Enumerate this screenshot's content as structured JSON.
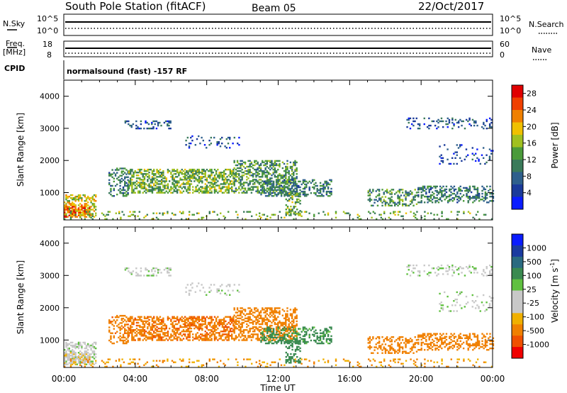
{
  "header": {
    "station": "South Pole Station (fitACF)",
    "beam": "Beam 05",
    "date": "22/Oct/2017"
  },
  "sky_panel": {
    "left_label": "N.Sky",
    "left_ticks": [
      "10^5",
      "10^0"
    ],
    "right_ticks": [
      "10^5",
      "10^0"
    ],
    "right_label": "N.Search"
  },
  "freq_panel": {
    "left_label_1": "Freq.",
    "left_label_2": "[MHz]",
    "left_ticks": [
      "18",
      "8"
    ],
    "right_ticks": [
      "60",
      "0"
    ],
    "right_label": "Nave"
  },
  "cpid": {
    "label": "CPID",
    "value": "normalsound (fast) -157 RF"
  },
  "colors": {
    "frame": "#000000",
    "scale_power": [
      "#0a1cff",
      "#1a3a9a",
      "#2e5f8c",
      "#3a7a5a",
      "#4a9a3a",
      "#a0c020",
      "#f0c000",
      "#f08000",
      "#f04000",
      "#e00000"
    ],
    "scale_velocity": [
      "#f00000",
      "#f05000",
      "#f08000",
      "#f0b000",
      "#c8c8c8",
      "#c8c8c8",
      "#60c040",
      "#3a8a50",
      "#2a6a80",
      "#1a3aa0",
      "#0a1cff"
    ]
  },
  "chart_data": [
    {
      "type": "heatmap",
      "panel": "power",
      "ylabel": "Slant Range [km]",
      "yticks": [
        "1000",
        "2000",
        "3000",
        "4000"
      ],
      "ylim": [
        150,
        4500
      ],
      "colorbar_label": "Power [dB]",
      "colorbar_ticks": [
        "4",
        "8",
        "12",
        "16",
        "20",
        "24",
        "28"
      ],
      "colorbar_range": [
        0,
        30
      ]
    },
    {
      "type": "heatmap",
      "panel": "velocity",
      "ylabel": "Slant Range [km]",
      "yticks": [
        "1000",
        "2000",
        "3000",
        "4000"
      ],
      "ylim": [
        150,
        4500
      ],
      "colorbar_label": "Velocity [m s",
      "colorbar_label_sup": "-1",
      "colorbar_label_end": "]",
      "colorbar_ticks": [
        "1000",
        "500",
        "100",
        "25",
        "-25",
        "-100",
        "-500",
        "-1000"
      ]
    }
  ],
  "xaxis": {
    "ticks": [
      "00:00",
      "04:00",
      "08:00",
      "12:00",
      "16:00",
      "20:00",
      "00:00"
    ],
    "label": "Time UT",
    "range_hours": [
      0,
      24
    ]
  },
  "echo_regions": [
    {
      "t0": 0.0,
      "t1": 1.8,
      "r0": 250,
      "r1": 950,
      "power": 18,
      "vel": 5,
      "dens": 0.55
    },
    {
      "t0": 0.0,
      "t1": 1.4,
      "r0": 250,
      "r1": 650,
      "power": 24,
      "vel": -15,
      "dens": 0.6
    },
    {
      "t0": 2.5,
      "t1": 3.6,
      "r0": 900,
      "r1": 1800,
      "power": 10,
      "vel": -350,
      "dens": 0.35
    },
    {
      "t0": 3.6,
      "t1": 9.5,
      "r0": 1000,
      "r1": 1750,
      "power": 14,
      "vel": -400,
      "dens": 0.55
    },
    {
      "t0": 9.5,
      "t1": 13.0,
      "r0": 1000,
      "r1": 2000,
      "power": 12,
      "vel": -250,
      "dens": 0.5
    },
    {
      "t0": 11.0,
      "t1": 15.0,
      "r0": 900,
      "r1": 1400,
      "power": 10,
      "vel": 150,
      "dens": 0.4
    },
    {
      "t0": 12.4,
      "t1": 13.2,
      "r0": 300,
      "r1": 1000,
      "power": 14,
      "vel": 300,
      "dens": 0.4
    },
    {
      "t0": 3.4,
      "t1": 6.0,
      "r0": 3000,
      "r1": 3250,
      "power": 6,
      "vel": 10,
      "dens": 0.25
    },
    {
      "t0": 6.8,
      "t1": 10.0,
      "r0": 2400,
      "r1": 2800,
      "power": 6,
      "vel": 10,
      "dens": 0.15
    },
    {
      "t0": 17.0,
      "t1": 19.8,
      "r0": 600,
      "r1": 1100,
      "power": 12,
      "vel": -300,
      "dens": 0.35
    },
    {
      "t0": 19.8,
      "t1": 24.0,
      "r0": 700,
      "r1": 1200,
      "power": 10,
      "vel": -200,
      "dens": 0.4
    },
    {
      "t0": 19.0,
      "t1": 24.0,
      "r0": 3000,
      "r1": 3350,
      "power": 6,
      "vel": 10,
      "dens": 0.2
    },
    {
      "t0": 21.0,
      "t1": 24.0,
      "r0": 1900,
      "r1": 2500,
      "power": 5,
      "vel": 10,
      "dens": 0.12
    },
    {
      "t0": 0.0,
      "t1": 24.0,
      "r0": 180,
      "r1": 450,
      "power": 14,
      "vel": -100,
      "dens": 0.12
    }
  ]
}
